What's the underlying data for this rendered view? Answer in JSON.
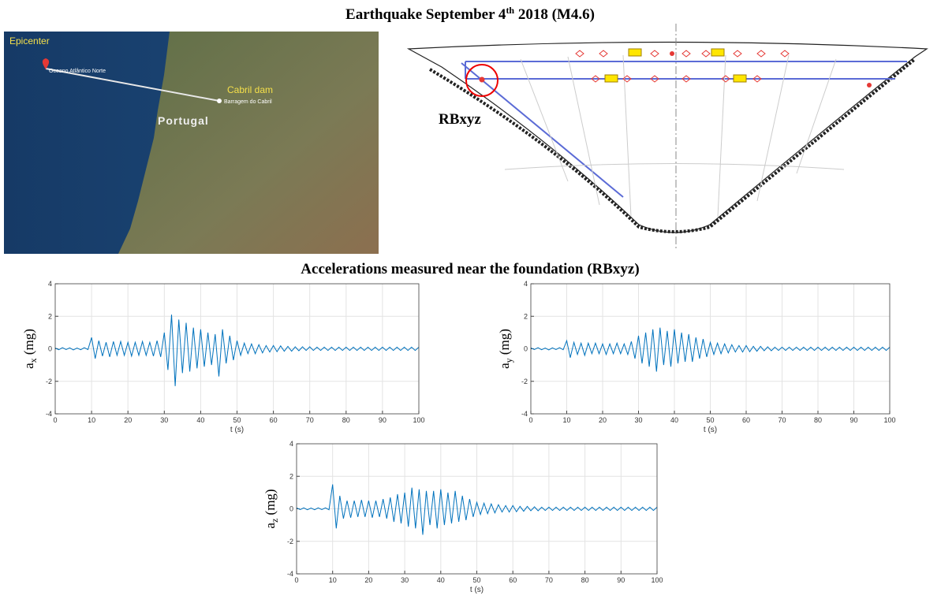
{
  "title": {
    "text": "Earthquake September 4",
    "superscript": "th",
    "rest": "2018 (M4.6)"
  },
  "subtitle": "Accelerations measured near the foundation (RBxyz)",
  "map": {
    "epicenter": "Epicenter",
    "ocean": "Oceano Atlântico Norte",
    "dam": "Cabril dam",
    "dam_place": "Barragem do Cabril",
    "country": "Portugal"
  },
  "diagram": {
    "sensor": "RBxyz"
  },
  "chart_data": [
    {
      "type": "line",
      "ylabel": {
        "symbol": "a",
        "subscript": "x",
        "unit": "(mg)"
      },
      "xlabel": "t (s)",
      "color": "#0072bd",
      "grid": true,
      "xlim": [
        0,
        100
      ],
      "ylim": [
        -4,
        4
      ],
      "xticks": [
        0,
        10,
        20,
        30,
        40,
        50,
        60,
        70,
        80,
        90,
        100
      ],
      "yticks": [
        -4,
        -2,
        0,
        2,
        4
      ],
      "x": [
        0,
        1,
        2,
        3,
        4,
        5,
        6,
        7,
        8,
        9,
        10,
        11,
        12,
        13,
        14,
        15,
        16,
        17,
        18,
        19,
        20,
        21,
        22,
        23,
        24,
        25,
        26,
        27,
        28,
        29,
        30,
        31,
        32,
        33,
        34,
        35,
        36,
        37,
        38,
        39,
        40,
        41,
        42,
        43,
        44,
        45,
        46,
        47,
        48,
        49,
        50,
        51,
        52,
        53,
        54,
        55,
        56,
        57,
        58,
        59,
        60,
        61,
        62,
        63,
        64,
        65,
        66,
        67,
        68,
        69,
        70,
        71,
        72,
        73,
        74,
        75,
        76,
        77,
        78,
        79,
        80,
        81,
        82,
        83,
        84,
        85,
        86,
        87,
        88,
        89,
        90,
        91,
        92,
        93,
        94,
        95,
        96,
        97,
        98,
        99,
        100
      ],
      "values": [
        0.05,
        -0.06,
        0.07,
        -0.05,
        0.06,
        -0.07,
        0.05,
        -0.06,
        0.07,
        -0.05,
        0.7,
        -0.6,
        0.5,
        -0.45,
        0.4,
        -0.5,
        0.45,
        -0.4,
        0.45,
        -0.4,
        0.4,
        -0.45,
        0.4,
        -0.4,
        0.45,
        -0.4,
        0.4,
        -0.45,
        0.5,
        -0.5,
        1.0,
        -1.3,
        2.1,
        -2.3,
        1.8,
        -1.5,
        1.6,
        -1.4,
        1.3,
        -1.2,
        1.2,
        -1.1,
        1.0,
        -1.0,
        0.9,
        -1.7,
        1.2,
        -0.9,
        0.8,
        -0.7,
        0.5,
        -0.4,
        0.35,
        -0.3,
        0.3,
        -0.3,
        0.25,
        -0.25,
        0.2,
        -0.2,
        0.2,
        -0.18,
        0.18,
        -0.15,
        0.15,
        -0.15,
        0.12,
        -0.12,
        0.12,
        -0.1,
        0.12,
        -0.1,
        0.1,
        -0.1,
        0.1,
        -0.1,
        0.1,
        -0.1,
        0.1,
        -0.1,
        0.1,
        -0.1,
        0.1,
        -0.1,
        0.1,
        -0.1,
        0.1,
        -0.1,
        0.1,
        -0.1,
        0.1,
        -0.1,
        0.1,
        -0.1,
        0.1,
        -0.1,
        0.1,
        -0.1,
        0.1,
        -0.1,
        0.1
      ]
    },
    {
      "type": "line",
      "ylabel": {
        "symbol": "a",
        "subscript": "y",
        "unit": "(mg)"
      },
      "xlabel": "t (s)",
      "color": "#0072bd",
      "grid": true,
      "xlim": [
        0,
        100
      ],
      "ylim": [
        -4,
        4
      ],
      "xticks": [
        0,
        10,
        20,
        30,
        40,
        50,
        60,
        70,
        80,
        90,
        100
      ],
      "yticks": [
        -4,
        -2,
        0,
        2,
        4
      ],
      "x": [
        0,
        1,
        2,
        3,
        4,
        5,
        6,
        7,
        8,
        9,
        10,
        11,
        12,
        13,
        14,
        15,
        16,
        17,
        18,
        19,
        20,
        21,
        22,
        23,
        24,
        25,
        26,
        27,
        28,
        29,
        30,
        31,
        32,
        33,
        34,
        35,
        36,
        37,
        38,
        39,
        40,
        41,
        42,
        43,
        44,
        45,
        46,
        47,
        48,
        49,
        50,
        51,
        52,
        53,
        54,
        55,
        56,
        57,
        58,
        59,
        60,
        61,
        62,
        63,
        64,
        65,
        66,
        67,
        68,
        69,
        70,
        71,
        72,
        73,
        74,
        75,
        76,
        77,
        78,
        79,
        80,
        81,
        82,
        83,
        84,
        85,
        86,
        87,
        88,
        89,
        90,
        91,
        92,
        93,
        94,
        95,
        96,
        97,
        98,
        99,
        100
      ],
      "values": [
        0.06,
        -0.05,
        0.07,
        -0.06,
        0.05,
        -0.07,
        0.06,
        -0.05,
        0.07,
        -0.06,
        0.5,
        -0.55,
        0.4,
        -0.35,
        0.35,
        -0.4,
        0.35,
        -0.3,
        0.35,
        -0.3,
        0.3,
        -0.35,
        0.3,
        -0.3,
        0.35,
        -0.3,
        0.3,
        -0.35,
        0.45,
        -0.6,
        0.8,
        -0.9,
        1.0,
        -1.1,
        1.2,
        -1.4,
        1.3,
        -1.0,
        1.1,
        -1.1,
        1.2,
        -0.9,
        1.0,
        -0.8,
        0.9,
        -0.8,
        0.7,
        -0.6,
        0.6,
        -0.5,
        0.4,
        -0.35,
        0.35,
        -0.3,
        0.3,
        -0.25,
        0.25,
        -0.2,
        0.2,
        -0.2,
        0.2,
        -0.18,
        0.15,
        -0.15,
        0.15,
        -0.12,
        0.12,
        -0.12,
        0.1,
        -0.1,
        0.1,
        -0.1,
        0.1,
        -0.1,
        0.1,
        -0.1,
        0.1,
        -0.1,
        0.1,
        -0.1,
        0.1,
        -0.1,
        0.1,
        -0.1,
        0.1,
        -0.1,
        0.1,
        -0.1,
        0.1,
        -0.1,
        0.1,
        -0.1,
        0.1,
        -0.1,
        0.1,
        -0.1,
        0.1,
        -0.1,
        0.1,
        -0.1,
        0.1
      ]
    },
    {
      "type": "line",
      "ylabel": {
        "symbol": "a",
        "subscript": "z",
        "unit": "(mg)"
      },
      "xlabel": "t (s)",
      "color": "#0072bd",
      "grid": true,
      "xlim": [
        0,
        100
      ],
      "ylim": [
        -4,
        4
      ],
      "xticks": [
        0,
        10,
        20,
        30,
        40,
        50,
        60,
        70,
        80,
        90,
        100
      ],
      "yticks": [
        -4,
        -2,
        0,
        2,
        4
      ],
      "x": [
        0,
        1,
        2,
        3,
        4,
        5,
        6,
        7,
        8,
        9,
        10,
        11,
        12,
        13,
        14,
        15,
        16,
        17,
        18,
        19,
        20,
        21,
        22,
        23,
        24,
        25,
        26,
        27,
        28,
        29,
        30,
        31,
        32,
        33,
        34,
        35,
        36,
        37,
        38,
        39,
        40,
        41,
        42,
        43,
        44,
        45,
        46,
        47,
        48,
        49,
        50,
        51,
        52,
        53,
        54,
        55,
        56,
        57,
        58,
        59,
        60,
        61,
        62,
        63,
        64,
        65,
        66,
        67,
        68,
        69,
        70,
        71,
        72,
        73,
        74,
        75,
        76,
        77,
        78,
        79,
        80,
        81,
        82,
        83,
        84,
        85,
        86,
        87,
        88,
        89,
        90,
        91,
        92,
        93,
        94,
        95,
        96,
        97,
        98,
        99,
        100
      ],
      "values": [
        0.06,
        -0.05,
        0.06,
        -0.06,
        0.05,
        -0.06,
        0.06,
        -0.05,
        0.06,
        -0.06,
        1.5,
        -1.2,
        0.8,
        -0.6,
        0.5,
        -0.55,
        0.5,
        -0.5,
        0.55,
        -0.5,
        0.5,
        -0.55,
        0.5,
        -0.5,
        0.6,
        -0.6,
        0.7,
        -0.8,
        0.9,
        -0.9,
        1.0,
        -1.1,
        1.3,
        -1.2,
        1.2,
        -1.6,
        1.1,
        -1.0,
        1.1,
        -1.2,
        1.2,
        -1.0,
        1.0,
        -0.9,
        1.1,
        -0.8,
        0.8,
        -0.7,
        0.6,
        -0.5,
        0.4,
        -0.35,
        0.35,
        -0.3,
        0.3,
        -0.25,
        0.25,
        -0.2,
        0.2,
        -0.2,
        0.2,
        -0.18,
        0.15,
        -0.15,
        0.15,
        -0.12,
        0.12,
        -0.12,
        0.1,
        -0.1,
        0.1,
        -0.1,
        0.1,
        -0.1,
        0.1,
        -0.1,
        0.1,
        -0.1,
        0.1,
        -0.1,
        0.1,
        -0.1,
        0.1,
        -0.1,
        0.1,
        -0.1,
        0.1,
        -0.1,
        0.1,
        -0.1,
        0.1,
        -0.1,
        0.1,
        -0.1,
        0.1,
        -0.1,
        0.1,
        -0.1,
        0.1,
        -0.1,
        0.1
      ]
    }
  ]
}
